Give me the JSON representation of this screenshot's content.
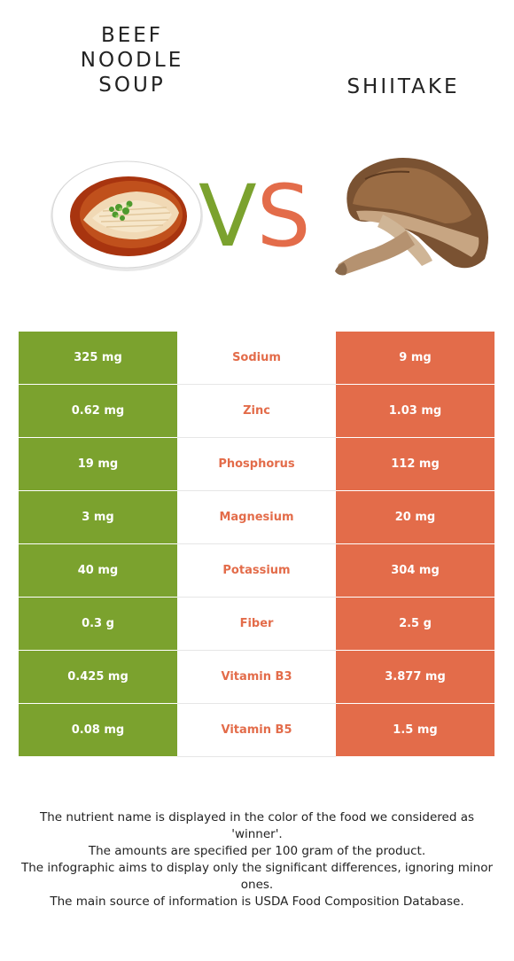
{
  "foods": {
    "left": {
      "name": "Beef noodle soup",
      "color": "#7ba22e"
    },
    "right": {
      "name": "Shiitake",
      "color": "#e36c4a"
    }
  },
  "vs": {
    "v": "V",
    "s": "S"
  },
  "rows": [
    {
      "nutrient": "Sodium",
      "left": "325 mg",
      "right": "9 mg"
    },
    {
      "nutrient": "Zinc",
      "left": "0.62 mg",
      "right": "1.03 mg"
    },
    {
      "nutrient": "Phosphorus",
      "left": "19 mg",
      "right": "112 mg"
    },
    {
      "nutrient": "Magnesium",
      "left": "3 mg",
      "right": "20 mg"
    },
    {
      "nutrient": "Potassium",
      "left": "40 mg",
      "right": "304 mg"
    },
    {
      "nutrient": "Fiber",
      "left": "0.3 g",
      "right": "2.5 g"
    },
    {
      "nutrient": "Vitamin B3",
      "left": "0.425 mg",
      "right": "3.877 mg"
    },
    {
      "nutrient": "Vitamin B5",
      "left": "0.08 mg",
      "right": "1.5 mg"
    }
  ],
  "footnote": [
    "The nutrient name is displayed in the color of the food we considered as 'winner'.",
    "The amounts are specified per 100 gram of the product.",
    "The infographic aims to display only the significant differences, ignoring minor ones.",
    "The main source of information is USDA Food Composition Database."
  ]
}
